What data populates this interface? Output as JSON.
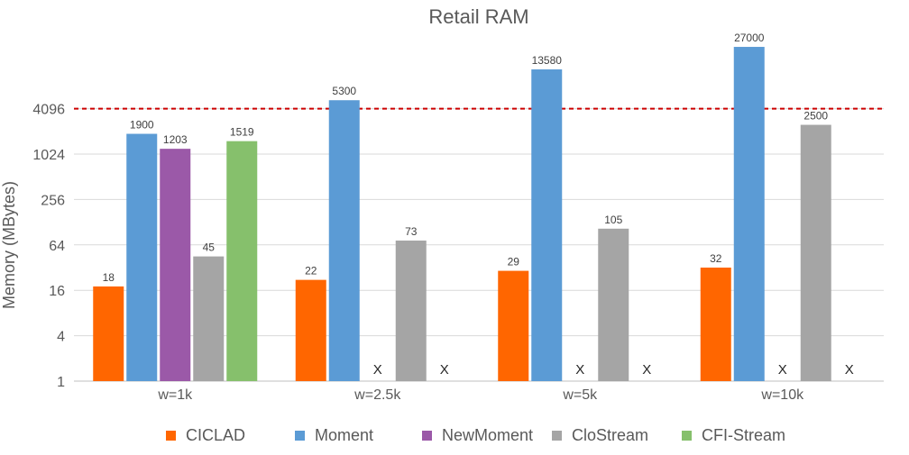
{
  "chart_data": {
    "type": "bar",
    "title": "Retail RAM",
    "xlabel": "",
    "ylabel": "Memory (MBytes)",
    "yscale": "log2",
    "ylim": [
      1,
      32768
    ],
    "yticks": [
      1,
      4,
      16,
      64,
      256,
      1024,
      4096
    ],
    "ytick_labels": [
      "1",
      "4",
      "16",
      "64",
      "256",
      "1024",
      "4096"
    ],
    "categories": [
      "w=1k",
      "w=2.5k",
      "w=5k",
      "w=10k"
    ],
    "series": [
      {
        "name": "CICLAD",
        "color": "#ff6600",
        "values": [
          18,
          22,
          29,
          32
        ],
        "labels": [
          "18",
          "22",
          "29",
          "32"
        ]
      },
      {
        "name": "Moment",
        "color": "#5b9bd5",
        "values": [
          1900,
          5300,
          13580,
          27000
        ],
        "labels": [
          "1900",
          "5300",
          "13580",
          "27000"
        ]
      },
      {
        "name": "NewMoment",
        "color": "#9b59a8",
        "values": [
          1203,
          null,
          null,
          null
        ],
        "labels": [
          "1203",
          "X",
          "X",
          "X"
        ]
      },
      {
        "name": "CloStream",
        "color": "#a5a5a5",
        "values": [
          45,
          73,
          105,
          2500
        ],
        "labels": [
          "45",
          "73",
          "105",
          "2500"
        ]
      },
      {
        "name": "CFI-Stream",
        "color": "#86c06c",
        "values": [
          1519,
          null,
          null,
          null
        ],
        "labels": [
          "1519",
          "X",
          "X",
          "X"
        ]
      }
    ],
    "reference_line": {
      "value": 4096,
      "color": "#cc0000",
      "style": "dashed"
    },
    "grid": {
      "horizontal": true,
      "color": "#d9d9d9"
    },
    "legend": {
      "position": "bottom"
    }
  }
}
